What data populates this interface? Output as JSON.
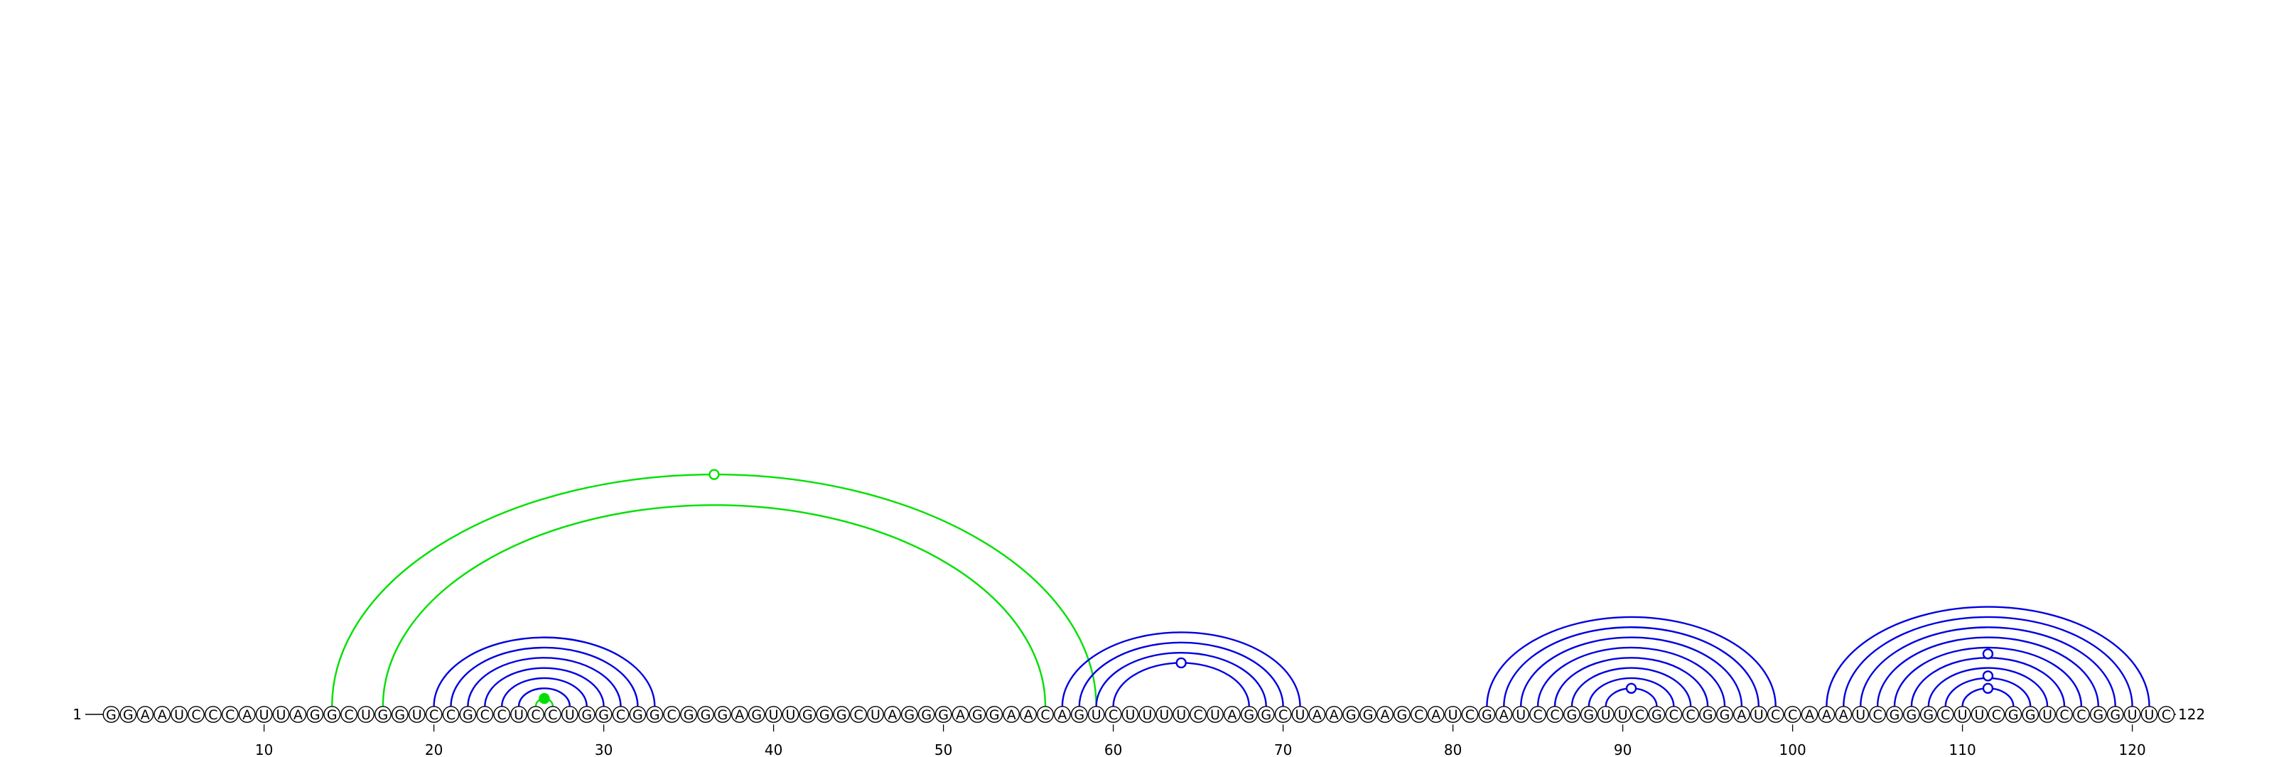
{
  "sequence": "GGAAUCCCAUUAGGCUGGUCCGCCUCCUGGCGGCGGGAGUUGGGCUAGGGAGGAACAGUCUUUUCUAGGCUAAGGAGCAUCGAUCCGGUUCGCCGGAUCCAAAUCGGGCUUCGGUCCGGUUC",
  "start_label": "1",
  "end_label": "122",
  "ticks": [
    10,
    20,
    30,
    40,
    50,
    60,
    70,
    80,
    90,
    100,
    110,
    120
  ],
  "colors": {
    "pseudoknot": "#00e000",
    "helix": "#0000e0",
    "baseline": "#000000"
  },
  "helices": [
    {
      "color": "helix",
      "pairs": [
        [
          20,
          33
        ],
        [
          21,
          32
        ],
        [
          22,
          31
        ],
        [
          23,
          30
        ],
        [
          24,
          29
        ],
        [
          25,
          28
        ]
      ]
    },
    {
      "color": "pseudoknot",
      "pairs": [
        [
          26,
          27
        ]
      ],
      "marker": "filled"
    },
    {
      "color": "pseudoknot",
      "pairs": [
        [
          14,
          59
        ]
      ],
      "marker": "open"
    },
    {
      "color": "pseudoknot",
      "pairs": [
        [
          17,
          56
        ]
      ]
    },
    {
      "color": "helix",
      "pairs": [
        [
          57,
          71
        ],
        [
          58,
          70
        ],
        [
          59,
          69
        ],
        [
          60,
          68
        ]
      ],
      "marker": "open"
    },
    {
      "color": "helix",
      "pairs": [
        [
          82,
          99
        ],
        [
          83,
          98
        ],
        [
          84,
          97
        ],
        [
          85,
          96
        ],
        [
          86,
          95
        ],
        [
          87,
          94
        ],
        [
          88,
          93
        ],
        [
          89,
          92
        ]
      ],
      "marker": "open"
    },
    {
      "color": "helix",
      "pairs": [
        [
          102,
          121
        ],
        [
          103,
          120
        ],
        [
          104,
          119
        ],
        [
          105,
          118
        ],
        [
          106,
          117
        ],
        [
          107,
          116
        ],
        [
          108,
          115
        ],
        [
          109,
          114
        ],
        [
          110,
          113
        ]
      ],
      "marker": "open"
    }
  ],
  "loop_markers": [
    {
      "position": 111.5,
      "color": "helix",
      "level": 2
    },
    {
      "position": 111.5,
      "color": "helix",
      "level": 1
    }
  ]
}
